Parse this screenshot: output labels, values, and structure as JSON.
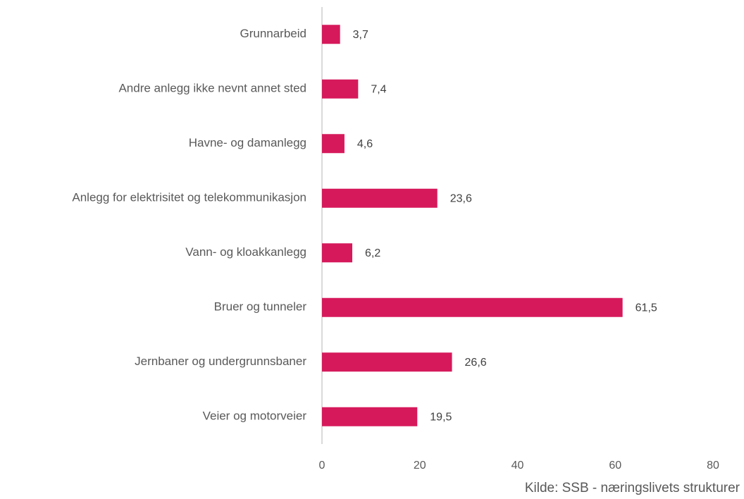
{
  "chart_data": {
    "type": "bar",
    "orientation": "horizontal",
    "categories": [
      "Grunnarbeid",
      "Andre anlegg ikke nevnt annet sted",
      "Havne- og damanlegg",
      "Anlegg for elektrisitet og telekommunikasjon",
      "Vann- og kloakkanlegg",
      "Bruer og tunneler",
      "Jernbaner og undergrunnsbaner",
      "Veier og motorveier"
    ],
    "values": [
      3.7,
      7.4,
      4.6,
      23.6,
      6.2,
      61.5,
      26.6,
      19.5
    ],
    "value_labels": [
      "3,7",
      "7,4",
      "4,6",
      "23,6",
      "6,2",
      "61,5",
      "26,6",
      "19,5"
    ],
    "color": "#d6195b",
    "xlim": [
      0,
      80
    ],
    "xticks": [
      0,
      20,
      40,
      60,
      80
    ],
    "grid": false,
    "source": "Kilde: SSB - næringslivets strukturer"
  }
}
